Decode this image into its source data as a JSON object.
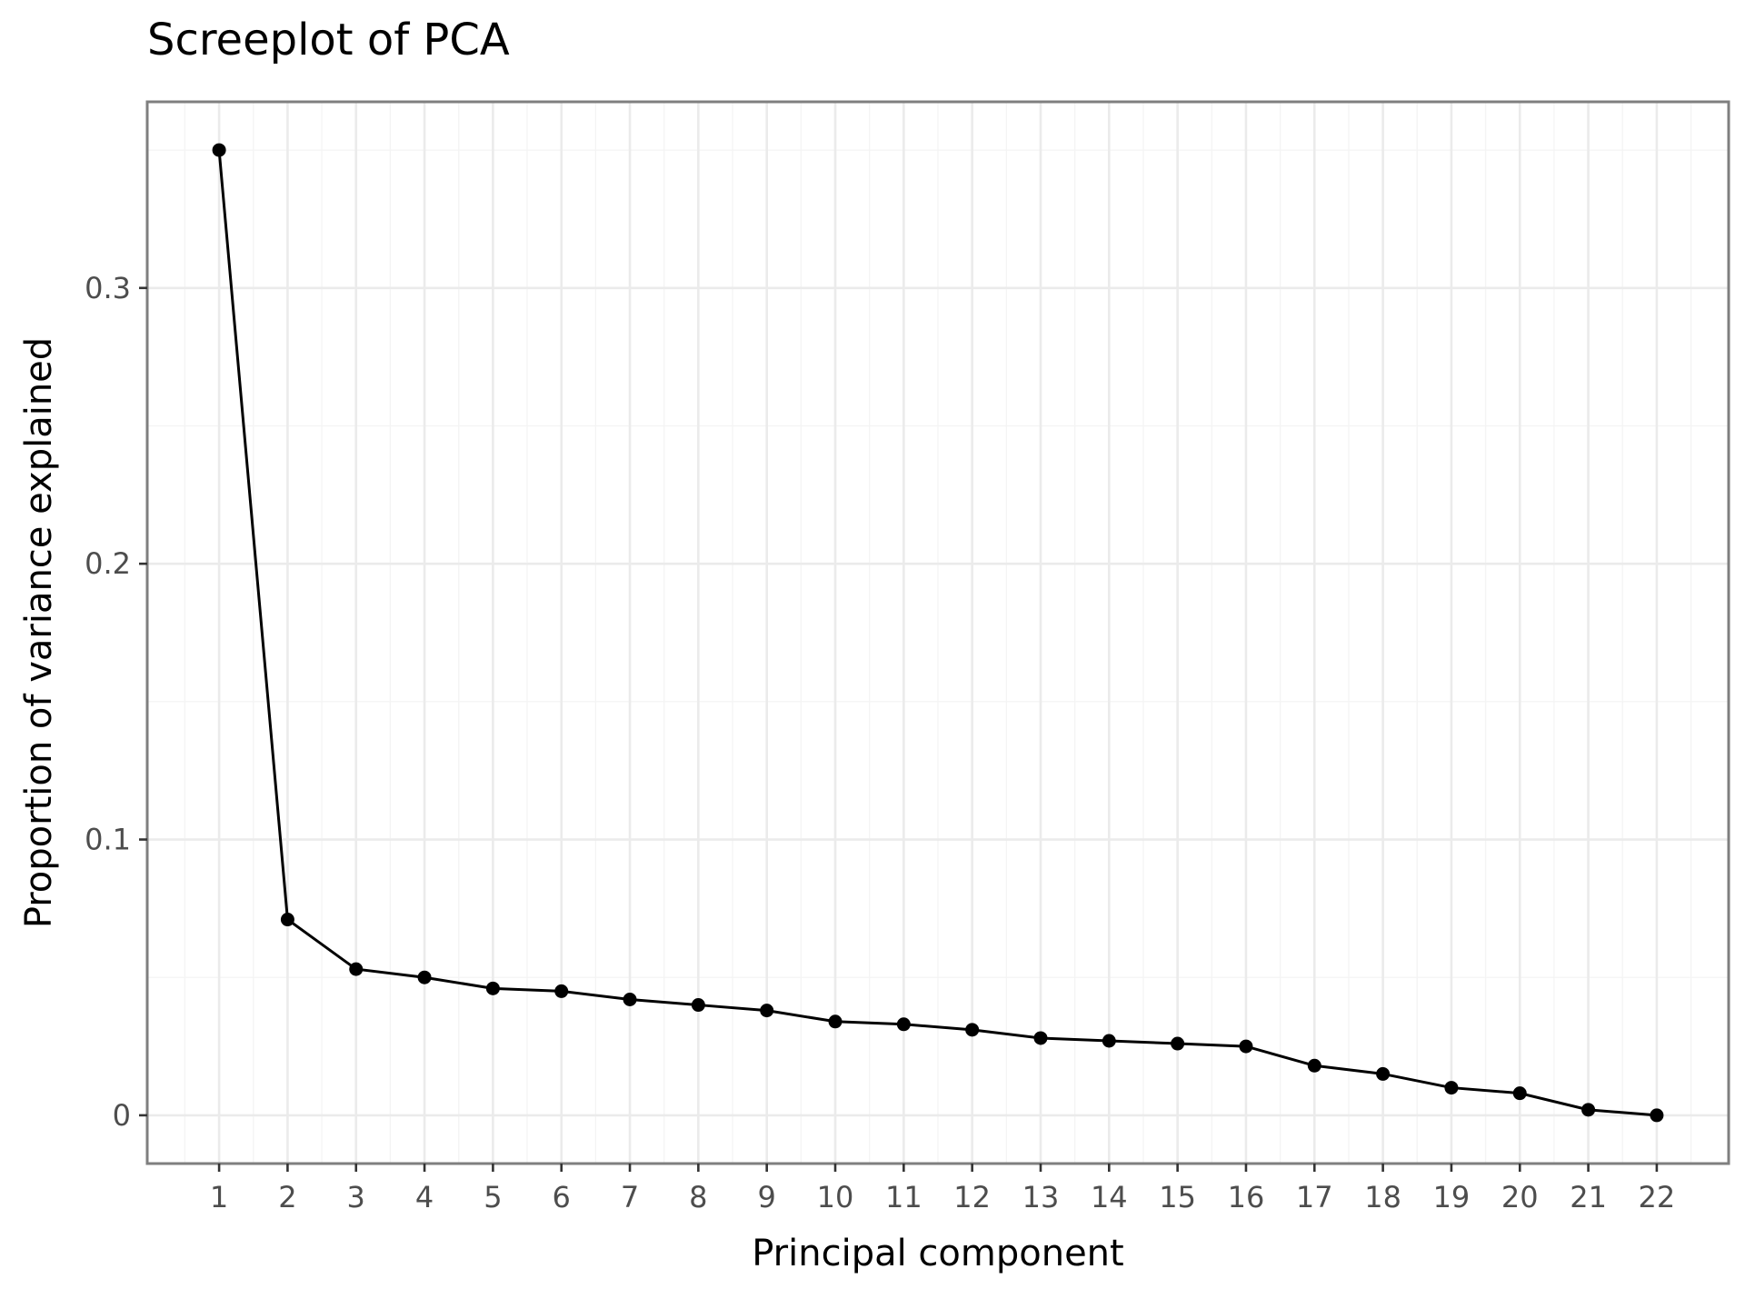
{
  "chart_data": {
    "type": "line",
    "title": "Screeplot of PCA",
    "xlabel": "Principal component",
    "ylabel": "Proportion of variance explained",
    "x": [
      1,
      2,
      3,
      4,
      5,
      6,
      7,
      8,
      9,
      10,
      11,
      12,
      13,
      14,
      15,
      16,
      17,
      18,
      19,
      20,
      21,
      22
    ],
    "y": [
      0.35,
      0.071,
      0.053,
      0.05,
      0.046,
      0.045,
      0.042,
      0.04,
      0.038,
      0.034,
      0.033,
      0.031,
      0.028,
      0.027,
      0.026,
      0.025,
      0.018,
      0.015,
      0.01,
      0.008,
      0.002,
      0.0
    ],
    "xticks": [
      "1",
      "2",
      "3",
      "4",
      "5",
      "6",
      "7",
      "8",
      "9",
      "10",
      "11",
      "12",
      "13",
      "14",
      "15",
      "16",
      "17",
      "18",
      "19",
      "20",
      "21",
      "22"
    ],
    "yticks": [
      {
        "value": 0,
        "label": "0"
      },
      {
        "value": 0.1,
        "label": "0.1"
      },
      {
        "value": 0.2,
        "label": "0.2"
      },
      {
        "value": 0.3,
        "label": "0.3"
      }
    ],
    "xlim": [
      -0.05,
      23.05
    ],
    "ylim": [
      -0.0175,
      0.3675
    ],
    "grid": true,
    "legend": "none",
    "colors": {
      "line": "#000000",
      "point": "#000000",
      "grid": "#ebebeb",
      "border": "#7f7f7f"
    }
  }
}
